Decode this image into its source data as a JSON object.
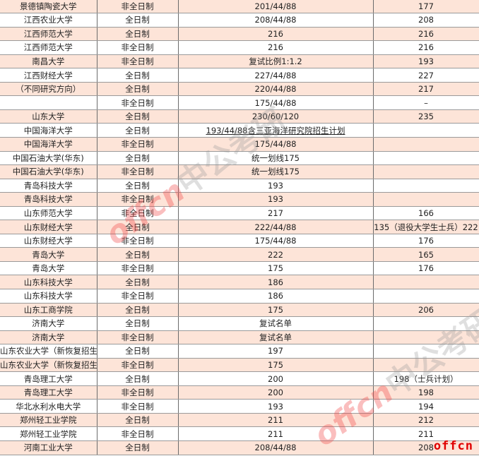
{
  "rows": [
    [
      "景德镇陶瓷大学",
      "非全日制",
      "201/44/88",
      "177"
    ],
    [
      "江西农业大学",
      "全日制",
      "208/44/88",
      "208"
    ],
    [
      "江西师范大学",
      "全日制",
      "216",
      "216"
    ],
    [
      "江西师范大学",
      "非全日制",
      "216",
      "216"
    ],
    [
      "南昌大学",
      "非全日制",
      "复试比例1:1.2",
      "193"
    ],
    [
      "江西财经大学",
      "全日制",
      "227/44/88",
      "227"
    ],
    [
      "（不同研究方向）",
      "全日制",
      "220/44/88",
      "217"
    ],
    [
      "",
      "非全日制",
      "175/44/88",
      "–"
    ],
    [
      "山东大学",
      "全日制",
      "230/60/120",
      "235"
    ],
    [
      "中国海洋大学",
      "全日制",
      "193/44/88含三亚海洋研究院招生计划",
      ""
    ],
    [
      "中国海洋大学",
      "非全日制",
      "175/44/88",
      ""
    ],
    [
      "中国石油大学(华东)",
      "全日制",
      "统一划线175",
      ""
    ],
    [
      "中国石油大学(华东)",
      "非全日制",
      "统一划线175",
      ""
    ],
    [
      "青岛科技大学",
      "全日制",
      "193",
      ""
    ],
    [
      "青岛科技大学",
      "非全日制",
      "193",
      ""
    ],
    [
      "山东师范大学",
      "非全日制",
      "217",
      "166"
    ],
    [
      "山东财经大学",
      "全日制",
      "222/44/88",
      "135（退役大学生士兵）222"
    ],
    [
      "山东财经大学",
      "非全日制",
      "175/44/88",
      "176"
    ],
    [
      "青岛大学",
      "全日制",
      "222",
      "165"
    ],
    [
      "青岛大学",
      "非全日制",
      "175",
      "176"
    ],
    [
      "山东科技大学",
      "全日制",
      "186",
      ""
    ],
    [
      "山东科技大学",
      "非全日制",
      "186",
      ""
    ],
    [
      "山东工商学院",
      "全日制",
      "175",
      "206"
    ],
    [
      "济南大学",
      "全日制",
      "复试名单",
      ""
    ],
    [
      "济南大学",
      "非全日制",
      "复试名单",
      ""
    ],
    [
      "山东农业大学（新恢复招生）",
      "全日制",
      "197",
      ""
    ],
    [
      "山东农业大学（新恢复招生）",
      "非全日制",
      "175",
      ""
    ],
    [
      "青岛理工大学",
      "全日制",
      "200",
      "198（士兵计划）"
    ],
    [
      "青岛理工大学",
      "非全日制",
      "200",
      "198"
    ],
    [
      "华北水利水电大学",
      "非全日制",
      "193",
      "194"
    ],
    [
      "郑州轻工业学院",
      "全日制",
      "211",
      "212"
    ],
    [
      "郑州轻工业学院",
      "非全日制",
      "211",
      "211"
    ],
    [
      "河南工业大学",
      "全日制",
      "208/44/88",
      "208"
    ]
  ],
  "watermark": {
    "brand": "offcn",
    "cn": "中公考研"
  },
  "logo": "offcn",
  "colors": {
    "alt_row": "#fde4d8",
    "logo": "#e00000"
  }
}
